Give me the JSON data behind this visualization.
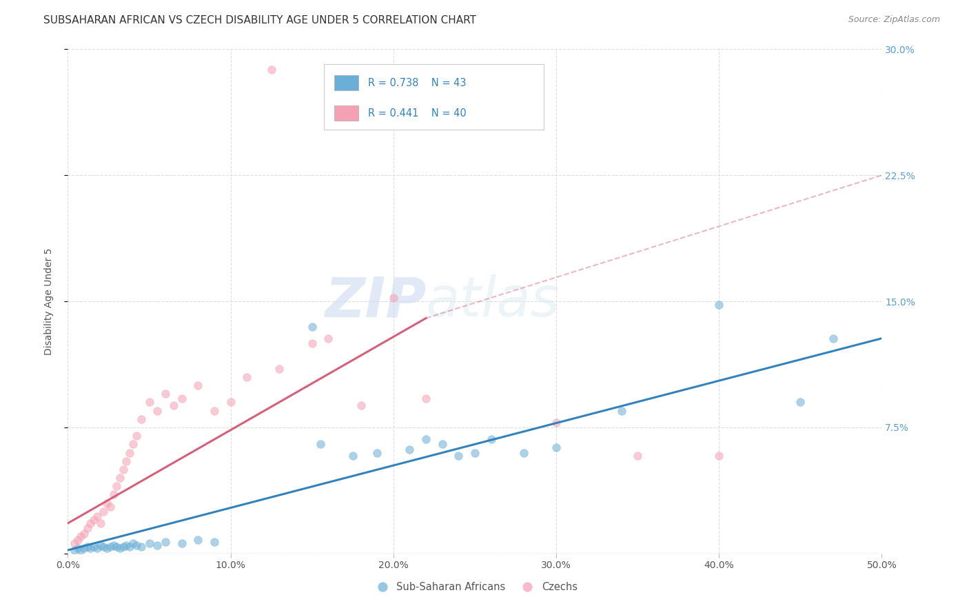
{
  "title": "SUBSAHARAN AFRICAN VS CZECH DISABILITY AGE UNDER 5 CORRELATION CHART",
  "source": "Source: ZipAtlas.com",
  "ylabel": "Disability Age Under 5",
  "xlim": [
    0.0,
    0.5
  ],
  "ylim": [
    0.0,
    0.3
  ],
  "xticks": [
    0.0,
    0.1,
    0.2,
    0.3,
    0.4,
    0.5
  ],
  "yticks": [
    0.0,
    0.075,
    0.15,
    0.225,
    0.3
  ],
  "xtick_labels": [
    "0.0%",
    "10.0%",
    "20.0%",
    "30.0%",
    "40.0%",
    "50.0%"
  ],
  "ytick_labels_right": [
    "",
    "7.5%",
    "15.0%",
    "22.5%",
    "30.0%"
  ],
  "legend_labels": [
    "Sub-Saharan Africans",
    "Czechs"
  ],
  "blue_R": "R = 0.738",
  "blue_N": "N = 43",
  "pink_R": "R = 0.441",
  "pink_N": "N = 40",
  "blue_color": "#6baed6",
  "pink_color": "#f4a0b5",
  "blue_line_color": "#3182bd",
  "pink_line_color": "#d4607a",
  "watermark_zip": "ZIP",
  "watermark_atlas": "atlas",
  "background_color": "#ffffff",
  "grid_color": "#dddddd",
  "blue_scatter": [
    [
      0.004,
      0.002
    ],
    [
      0.006,
      0.003
    ],
    [
      0.008,
      0.002
    ],
    [
      0.01,
      0.003
    ],
    [
      0.012,
      0.004
    ],
    [
      0.014,
      0.003
    ],
    [
      0.016,
      0.004
    ],
    [
      0.018,
      0.003
    ],
    [
      0.02,
      0.005
    ],
    [
      0.022,
      0.004
    ],
    [
      0.024,
      0.003
    ],
    [
      0.026,
      0.004
    ],
    [
      0.028,
      0.005
    ],
    [
      0.03,
      0.004
    ],
    [
      0.032,
      0.003
    ],
    [
      0.034,
      0.004
    ],
    [
      0.036,
      0.005
    ],
    [
      0.038,
      0.004
    ],
    [
      0.04,
      0.006
    ],
    [
      0.042,
      0.005
    ],
    [
      0.045,
      0.004
    ],
    [
      0.05,
      0.006
    ],
    [
      0.055,
      0.005
    ],
    [
      0.06,
      0.007
    ],
    [
      0.07,
      0.006
    ],
    [
      0.08,
      0.008
    ],
    [
      0.09,
      0.007
    ],
    [
      0.155,
      0.065
    ],
    [
      0.175,
      0.058
    ],
    [
      0.19,
      0.06
    ],
    [
      0.21,
      0.062
    ],
    [
      0.22,
      0.068
    ],
    [
      0.23,
      0.065
    ],
    [
      0.24,
      0.058
    ],
    [
      0.25,
      0.06
    ],
    [
      0.26,
      0.068
    ],
    [
      0.28,
      0.06
    ],
    [
      0.3,
      0.063
    ],
    [
      0.34,
      0.085
    ],
    [
      0.4,
      0.148
    ],
    [
      0.45,
      0.09
    ],
    [
      0.47,
      0.128
    ],
    [
      0.15,
      0.135
    ]
  ],
  "pink_scatter": [
    [
      0.004,
      0.006
    ],
    [
      0.006,
      0.008
    ],
    [
      0.008,
      0.01
    ],
    [
      0.01,
      0.012
    ],
    [
      0.012,
      0.015
    ],
    [
      0.014,
      0.018
    ],
    [
      0.016,
      0.02
    ],
    [
      0.018,
      0.022
    ],
    [
      0.02,
      0.018
    ],
    [
      0.022,
      0.025
    ],
    [
      0.024,
      0.03
    ],
    [
      0.026,
      0.028
    ],
    [
      0.028,
      0.035
    ],
    [
      0.03,
      0.04
    ],
    [
      0.032,
      0.045
    ],
    [
      0.034,
      0.05
    ],
    [
      0.036,
      0.055
    ],
    [
      0.038,
      0.06
    ],
    [
      0.04,
      0.065
    ],
    [
      0.042,
      0.07
    ],
    [
      0.045,
      0.08
    ],
    [
      0.05,
      0.09
    ],
    [
      0.055,
      0.085
    ],
    [
      0.06,
      0.095
    ],
    [
      0.065,
      0.088
    ],
    [
      0.07,
      0.092
    ],
    [
      0.08,
      0.1
    ],
    [
      0.09,
      0.085
    ],
    [
      0.1,
      0.09
    ],
    [
      0.11,
      0.105
    ],
    [
      0.13,
      0.11
    ],
    [
      0.15,
      0.125
    ],
    [
      0.16,
      0.128
    ],
    [
      0.18,
      0.088
    ],
    [
      0.2,
      0.152
    ],
    [
      0.22,
      0.092
    ],
    [
      0.3,
      0.078
    ],
    [
      0.35,
      0.058
    ],
    [
      0.125,
      0.288
    ],
    [
      0.4,
      0.058
    ]
  ],
  "blue_trendline": [
    [
      0.0,
      0.002
    ],
    [
      0.5,
      0.128
    ]
  ],
  "pink_trendline": [
    [
      0.0,
      0.018
    ],
    [
      0.22,
      0.14
    ]
  ],
  "pink_dashed_line": [
    [
      0.22,
      0.14
    ],
    [
      0.5,
      0.225
    ]
  ]
}
